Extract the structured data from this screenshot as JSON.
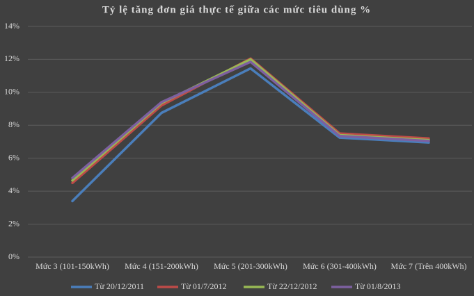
{
  "chart_data": {
    "type": "line",
    "title": "Tỷ lệ tăng đơn giá thực tế giữa các mức tiêu dùng %",
    "categories": [
      "Mức 3 (101-150kWh)",
      "Mức 4 (151-200kWh)",
      "Mức 5 (201-300kWh)",
      "Mức 6 (301-400kWh)",
      "Mức 7 (Trên 400kWh)"
    ],
    "series": [
      {
        "name": "Từ 20/12/2011",
        "color": "#4a7ebb",
        "values": [
          3.4,
          8.75,
          11.45,
          7.25,
          6.95
        ]
      },
      {
        "name": "Từ 01/7/2012",
        "color": "#be4b48",
        "values": [
          4.5,
          9.2,
          12.05,
          7.5,
          7.2
        ]
      },
      {
        "name": "Từ 22/12/2012",
        "color": "#98b954",
        "values": [
          4.65,
          9.35,
          12.0,
          7.4,
          7.1
        ]
      },
      {
        "name": "Từ 01/8/2013",
        "color": "#7d60a0",
        "values": [
          4.8,
          9.4,
          11.85,
          7.35,
          7.05
        ]
      }
    ],
    "ylim": [
      0,
      14
    ],
    "yticks": [
      {
        "value": 0,
        "label": "0%"
      },
      {
        "value": 2,
        "label": "2%"
      },
      {
        "value": 4,
        "label": "4%"
      },
      {
        "value": 6,
        "label": "6%"
      },
      {
        "value": 8,
        "label": "8%"
      },
      {
        "value": 10,
        "label": "10%"
      },
      {
        "value": 12,
        "label": "12%"
      },
      {
        "value": 14,
        "label": "14%"
      }
    ],
    "grid": true,
    "legend": "bottom"
  }
}
